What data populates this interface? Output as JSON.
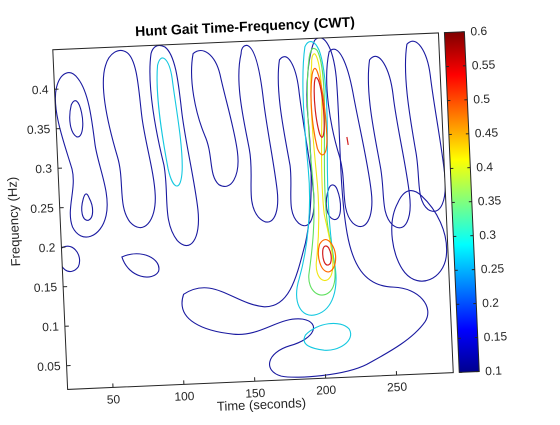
{
  "chart_data": {
    "type": "heatmap",
    "subtype": "contour",
    "title": "Hunt Gait Time-Frequency (CWT)",
    "xlabel": "Time (seconds)",
    "ylabel": "Frequency (Hz)",
    "xlim": [
      18,
      290
    ],
    "ylim": [
      0.02,
      0.45
    ],
    "x_ticks": [
      50,
      100,
      150,
      200,
      250
    ],
    "y_ticks": [
      0.05,
      0.1,
      0.15,
      0.2,
      0.25,
      0.3,
      0.35,
      0.4
    ],
    "colorbar": {
      "min": 0.1,
      "max": 0.6,
      "ticks": [
        0.1,
        0.15,
        0.2,
        0.25,
        0.3,
        0.35,
        0.4,
        0.45,
        0.5,
        0.55,
        0.6
      ],
      "colormap": "jet"
    },
    "contour_levels": [
      0.1,
      0.2,
      0.3,
      0.4,
      0.5,
      0.6
    ],
    "level_colors": [
      "#1a1aa0",
      "#14c8e0",
      "#5fe05f",
      "#f0e614",
      "#ff6a00",
      "#d21e1e"
    ],
    "features": [
      {
        "x": 200,
        "y": 0.42,
        "peak": 0.6
      },
      {
        "x": 203,
        "y": 0.19,
        "peak": 0.55
      },
      {
        "x": 107,
        "y": 0.38,
        "peak": 0.25
      },
      {
        "x": 212,
        "y": 0.12,
        "peak": 0.3
      }
    ],
    "grid": false,
    "legend": "colorbar-right"
  }
}
